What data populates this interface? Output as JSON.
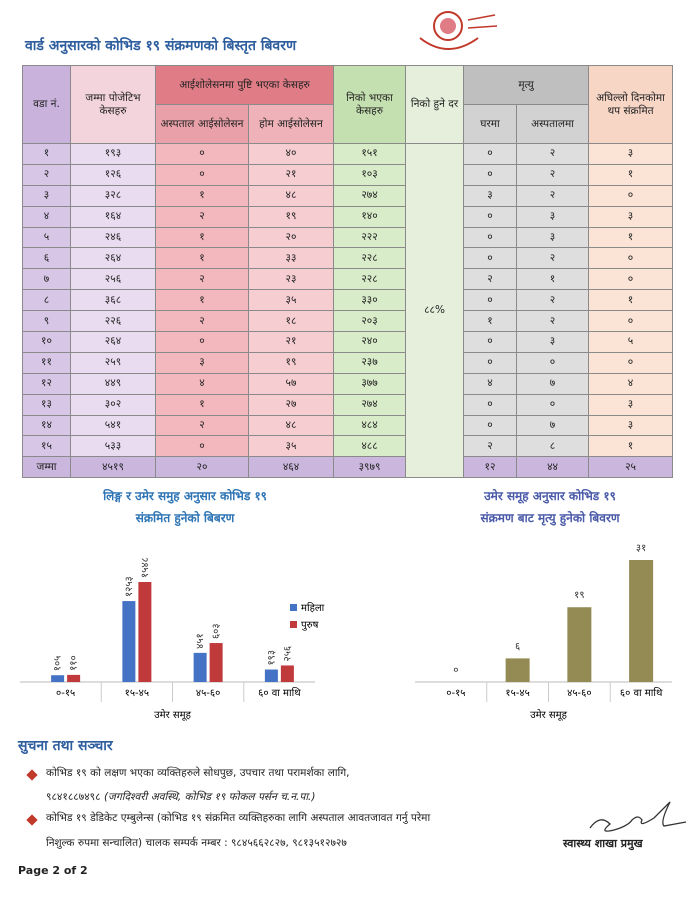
{
  "header": {
    "title": "वार्ड अनुसारको कोभिड १९ संक्रमणको बिस्तृत बिवरण"
  },
  "table": {
    "columns": {
      "ward": "वडा नं.",
      "total": "जम्मा पोजेटिभ केसहरु",
      "isolation": "आईशोलेसनमा पुष्टि भएका केसहरु",
      "hospital_isolation": "अस्पताल आईसोलेसन",
      "home_isolation": "होम आईसोलेसन",
      "recovered": "निको भएका केसहरु",
      "recovery_rate": "निको हुने दर",
      "deaths": "मृत्यु",
      "deaths_home": "घरमा",
      "deaths_hospital": "अस्पतालमा",
      "new_cases": "अघिल्लो दिनकोमा थप संक्रमित"
    },
    "rows": [
      [
        "१",
        "१९३",
        "०",
        "४०",
        "१५१",
        "०",
        "२",
        "३"
      ],
      [
        "२",
        "१२६",
        "०",
        "२१",
        "१०३",
        "०",
        "२",
        "१"
      ],
      [
        "३",
        "३२८",
        "१",
        "४८",
        "२७४",
        "३",
        "२",
        "०"
      ],
      [
        "४",
        "१६४",
        "२",
        "१९",
        "१४०",
        "०",
        "३",
        "३"
      ],
      [
        "५",
        "२४६",
        "१",
        "२०",
        "२२२",
        "०",
        "३",
        "१"
      ],
      [
        "६",
        "२६४",
        "१",
        "३३",
        "२२८",
        "०",
        "२",
        "०"
      ],
      [
        "७",
        "२५६",
        "२",
        "२३",
        "२२८",
        "२",
        "१",
        "०"
      ],
      [
        "८",
        "३६८",
        "१",
        "३५",
        "३३०",
        "०",
        "२",
        "१"
      ],
      [
        "९",
        "२२६",
        "२",
        "१८",
        "२०३",
        "१",
        "२",
        "०"
      ],
      [
        "१०",
        "२६४",
        "०",
        "२१",
        "२४०",
        "०",
        "३",
        "५"
      ],
      [
        "११",
        "२५९",
        "३",
        "१९",
        "२३७",
        "०",
        "०",
        "०"
      ],
      [
        "१२",
        "४४९",
        "४",
        "५७",
        "३७७",
        "४",
        "७",
        "४"
      ],
      [
        "१३",
        "३०२",
        "१",
        "२७",
        "२७४",
        "०",
        "०",
        "३"
      ],
      [
        "१४",
        "५४१",
        "२",
        "४८",
        "४८४",
        "०",
        "७",
        "३"
      ],
      [
        "१५",
        "५३३",
        "०",
        "३५",
        "४८८",
        "२",
        "८",
        "१"
      ]
    ],
    "total_row": [
      "जम्मा",
      "४५१९",
      "२०",
      "४६४",
      "३९७९",
      "१२",
      "४४",
      "२५"
    ],
    "recovery_rate": "८८%"
  },
  "chart_data": [
    {
      "type": "grouped_bar",
      "title": "लिङ्ग र उमेर समुह अनुसार कोभिड १९",
      "subtitle": "संक्रमित हुनेको बिबरण",
      "categories": [
        "०-१५",
        "१५-४५",
        "४५-६०",
        "६० वा माथि"
      ],
      "series": [
        {
          "name": "महिला",
          "color": "#4472c4",
          "values": [
            105,
            1253,
            451,
            193
          ],
          "value_labels": [
            "१०५",
            "१२५३",
            "४५१",
            "१९३"
          ]
        },
        {
          "name": "पुरुष",
          "color": "#c0393b",
          "values": [
            110,
            1548,
            603,
            256
          ],
          "value_labels": [
            "११०",
            "१५४८",
            "६०३",
            "२५६"
          ]
        }
      ],
      "xlabel": "उमेर समूह"
    },
    {
      "type": "bar",
      "title": "उमेर समूह अनुसार कोभिड १९",
      "subtitle": "संक्रमण बाट मृत्यु हुनेको बिवरण",
      "categories": [
        "०-१५",
        "१५-४५",
        "४५-६०",
        "६० वा माथि"
      ],
      "values": [
        0,
        6,
        19,
        31
      ],
      "value_labels": [
        "०",
        "६",
        "१९",
        "३१"
      ],
      "color": "#948a54",
      "xlabel": "उमेर समूह"
    }
  ],
  "notice": {
    "title": "सुचना तथा सञ्चार",
    "items": [
      {
        "text": "कोभिड १९ को लक्षण भएका व्यक्तिहरुले सोधपुछ, उपचार तथा परामर्शका लागि,",
        "phone": "९८४१८८७४९८",
        "note": "(जगदिश्वरी अवस्थि, कोभिड १९ फोकल पर्सन च.न.पा.)"
      },
      {
        "text": "कोभिड १९ डेडिकेट एम्बुलेन्स (कोभिड १९ संक्रमित व्यक्तिहरुका लागि अस्पताल आवतजावत गर्नु परेमा",
        "text2": "निशुल्क रुपमा सन्चालित) चालक सम्पर्क नम्बर : ९८४५६६२८२७, ९८१३५१२७२७"
      }
    ]
  },
  "signature": "स्वास्थ्य शाखा प्रमुख",
  "footer": "Page 2 of 2"
}
